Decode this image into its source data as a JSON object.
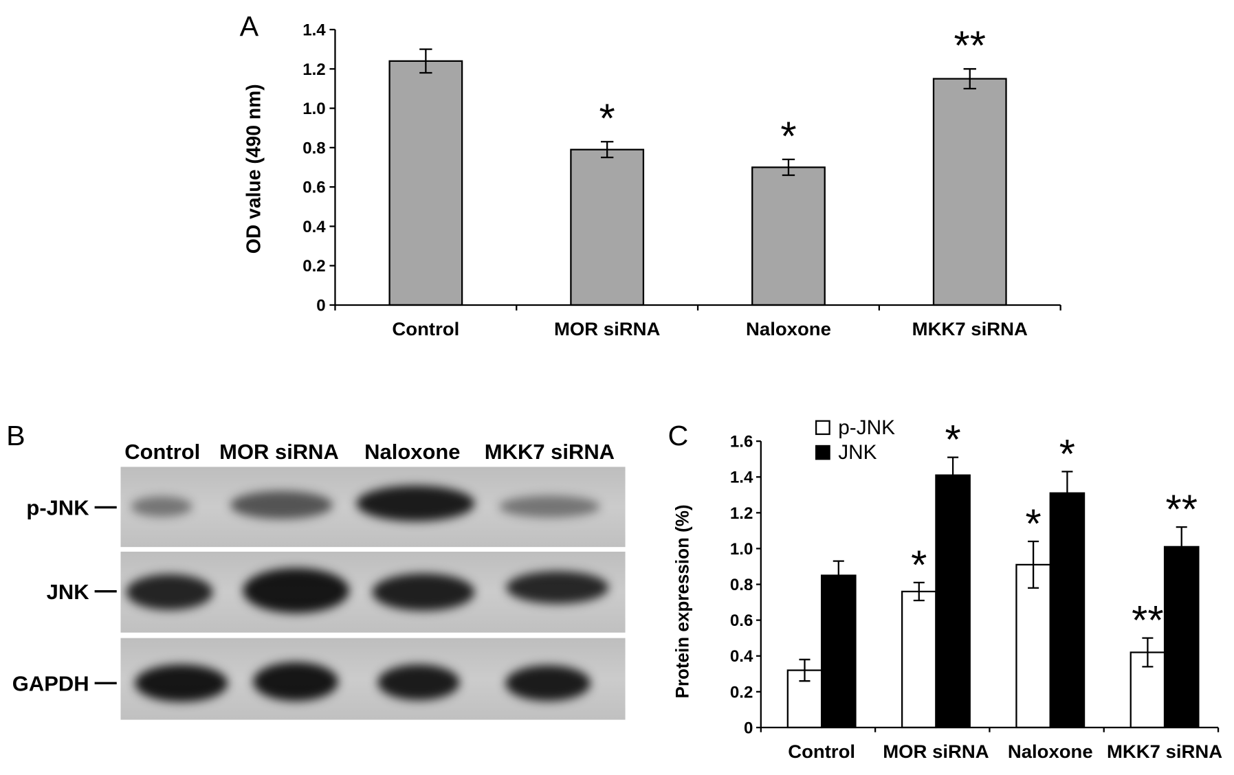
{
  "chart_data": [
    {
      "panel": "A",
      "type": "bar",
      "categories": [
        "Control",
        "MOR siRNA",
        "Naloxone",
        "MKK7 siRNA"
      ],
      "values": [
        1.24,
        0.79,
        0.7,
        1.15
      ],
      "errors": [
        0.06,
        0.04,
        0.04,
        0.05
      ],
      "significance": [
        "",
        "*",
        "*",
        "**"
      ],
      "ylabel": "OD value (490 nm)",
      "ylim": [
        0,
        1.4
      ],
      "yticks": [
        0,
        0.2,
        0.4,
        0.6,
        0.8,
        1.0,
        1.2,
        1.4
      ],
      "ytick_labels": [
        "0",
        "0.2",
        "0.4",
        "0.6",
        "0.8",
        "1.0",
        "1.2",
        "1.4"
      ],
      "bar_color": "#a6a6a6",
      "grid": false
    },
    {
      "panel": "C",
      "type": "bar",
      "categories": [
        "Control",
        "MOR siRNA",
        "Naloxone",
        "MKK7 siRNA"
      ],
      "series": [
        {
          "name": "p-JNK",
          "color": "#ffffff",
          "values": [
            0.32,
            0.76,
            0.91,
            0.42
          ],
          "errors": [
            0.06,
            0.05,
            0.13,
            0.08
          ],
          "significance": [
            "",
            "*",
            "*",
            "**"
          ]
        },
        {
          "name": "JNK",
          "color": "#000000",
          "values": [
            0.85,
            1.41,
            1.31,
            1.01
          ],
          "errors": [
            0.08,
            0.1,
            0.12,
            0.11
          ],
          "significance": [
            "",
            "*",
            "*",
            "**"
          ]
        }
      ],
      "ylabel": "Protein expression (%)",
      "ylim": [
        0,
        1.6
      ],
      "yticks": [
        0,
        0.2,
        0.4,
        0.6,
        0.8,
        1.0,
        1.2,
        1.4,
        1.6
      ],
      "ytick_labels": [
        "0",
        "0.2",
        "0.4",
        "0.6",
        "0.8",
        "1.0",
        "1.2",
        "1.4",
        "1.6"
      ],
      "grid": false,
      "legend": "top-left"
    }
  ],
  "western_blot": {
    "panel": "B",
    "lanes": [
      "Control",
      "MOR siRNA",
      "Naloxone",
      "MKK7 siRNA"
    ],
    "rows": [
      {
        "label": "p-JNK",
        "band_intensity": [
          0.45,
          0.62,
          0.92,
          0.45
        ]
      },
      {
        "label": "JNK",
        "band_intensity": [
          0.88,
          0.95,
          0.9,
          0.86
        ]
      },
      {
        "label": "GAPDH",
        "band_intensity": [
          0.95,
          0.95,
          0.92,
          0.92
        ]
      }
    ],
    "background_color": "#c8c8c8"
  }
}
